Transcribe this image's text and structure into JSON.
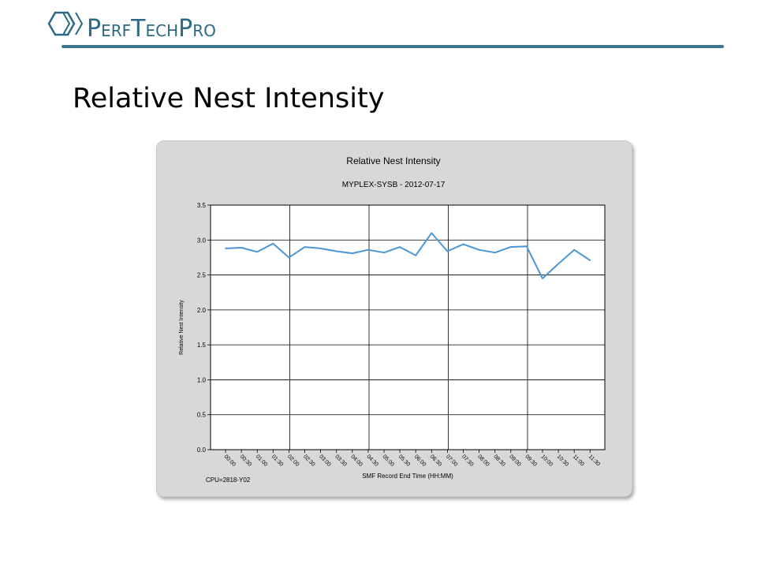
{
  "header": {
    "logo_text": "PerfTechPro",
    "title": "Relative Nest Intensity"
  },
  "colors": {
    "accent_rule": "#3b7890",
    "logo_text": "#2b6984",
    "series_line": "#4a96d6",
    "chart_background": "#d8d8d8",
    "plot_background": "#ffffff"
  },
  "chart_data": {
    "type": "line",
    "title": "Relative Nest Intensity",
    "subtitle": "MYPLEX-SYSB - 2012-07-17",
    "xlabel": "SMF Record End Time (HH:MM)",
    "ylabel": "Relative Nest Intensity",
    "footnote": "CPU=2818-Y02",
    "ylim": [
      0,
      3.5
    ],
    "y_ticks": [
      "0.0",
      "0.5",
      "1.0",
      "1.5",
      "2.0",
      "2.5",
      "3.0",
      "3.5"
    ],
    "x_ticks": [
      "00:00",
      "00:30",
      "01:00",
      "01:30",
      "02:00",
      "02:30",
      "03:00",
      "03:30",
      "04:00",
      "04:30",
      "05:00",
      "05:30",
      "06:00",
      "06:30",
      "07:00",
      "07:30",
      "08:00",
      "08:30",
      "09:00",
      "09:30",
      "10:00",
      "10:30",
      "11:00",
      "11:30"
    ],
    "x": [
      "00:00",
      "00:30",
      "01:00",
      "01:30",
      "02:00",
      "02:30",
      "03:00",
      "03:30",
      "04:00",
      "04:30",
      "05:00",
      "05:30",
      "06:00",
      "06:30",
      "07:00",
      "07:30",
      "08:00",
      "08:30",
      "09:00",
      "09:30",
      "10:00",
      "10:30",
      "11:00",
      "11:30"
    ],
    "values": [
      2.88,
      2.89,
      2.83,
      2.95,
      2.75,
      2.9,
      2.88,
      2.84,
      2.81,
      2.86,
      2.82,
      2.9,
      2.78,
      3.1,
      2.84,
      2.94,
      2.86,
      2.82,
      2.9,
      2.91,
      2.45,
      2.66,
      2.86,
      2.71
    ],
    "major_gridlines_every_hours": 2.5,
    "grid": true,
    "legend": "none"
  }
}
